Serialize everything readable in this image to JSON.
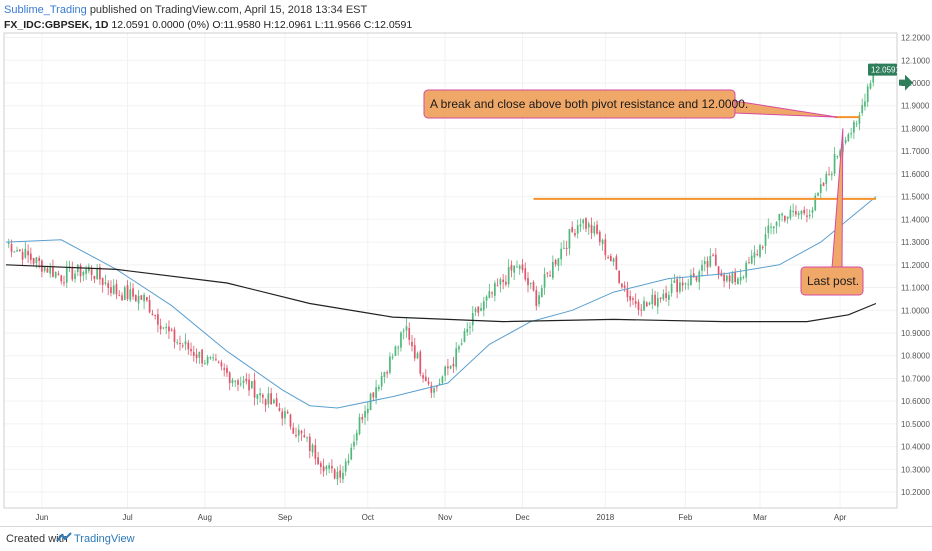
{
  "header": {
    "author": "Sublime_Trading",
    "published_text": "published on TradingView.com, April 15, 2018 13:34 EST",
    "symbol": "FX_IDC:GBPSEK, 1D",
    "ohlc_text": "12.0591 0.0000 (0%) O:11.9580 H:12.0961 L:11.9566 C:12.0591"
  },
  "footer": {
    "created_label": "Created with",
    "brand": "TradingView"
  },
  "colors": {
    "up": "#4fb87a",
    "down": "#e0556a",
    "ma_blue": "#5a9fd0",
    "ma_black": "#222222",
    "level": "#f5922b",
    "callout_fill": "#f0a868",
    "callout_border": "#d64aa0",
    "price_tag": "#2e7d5b"
  },
  "chart_data": {
    "type": "candlestick",
    "symbol": "FX_IDC:GBPSEK",
    "timeframe": "1D",
    "x_labels": [
      "Jun",
      "Jul",
      "Aug",
      "Sep",
      "Oct",
      "Nov",
      "Dec",
      "2018",
      "Feb",
      "Mar",
      "Apr"
    ],
    "y_ticks": [
      10.2,
      10.3,
      10.4,
      10.5,
      10.6,
      10.7,
      10.8,
      10.9,
      11.0,
      11.1,
      11.2,
      11.3,
      11.4,
      11.5,
      11.6,
      11.7,
      11.8,
      11.9,
      12.0,
      12.1,
      12.2
    ],
    "ylim": [
      10.13,
      12.22
    ],
    "last_price": "12.0591",
    "path_anchors": [
      [
        0,
        11.3
      ],
      [
        10,
        11.22
      ],
      [
        20,
        11.15
      ],
      [
        30,
        11.18
      ],
      [
        40,
        11.08
      ],
      [
        50,
        11.05
      ],
      [
        60,
        10.88
      ],
      [
        70,
        10.8
      ],
      [
        80,
        10.72
      ],
      [
        90,
        10.65
      ],
      [
        100,
        10.55
      ],
      [
        110,
        10.4
      ],
      [
        118,
        10.28
      ],
      [
        122,
        10.3
      ],
      [
        130,
        10.58
      ],
      [
        140,
        10.8
      ],
      [
        145,
        10.92
      ],
      [
        150,
        10.75
      ],
      [
        155,
        10.65
      ],
      [
        162,
        10.78
      ],
      [
        170,
        10.98
      ],
      [
        178,
        11.1
      ],
      [
        185,
        11.2
      ],
      [
        192,
        11.05
      ],
      [
        200,
        11.25
      ],
      [
        208,
        11.4
      ],
      [
        214,
        11.33
      ],
      [
        220,
        11.2
      ],
      [
        226,
        11.05
      ],
      [
        232,
        11.02
      ],
      [
        238,
        11.08
      ],
      [
        244,
        11.12
      ],
      [
        250,
        11.15
      ],
      [
        256,
        11.22
      ],
      [
        262,
        11.12
      ],
      [
        268,
        11.18
      ],
      [
        274,
        11.3
      ],
      [
        280,
        11.42
      ],
      [
        286,
        11.42
      ],
      [
        292,
        11.45
      ],
      [
        298,
        11.6
      ],
      [
        304,
        11.78
      ],
      [
        308,
        11.8
      ],
      [
        311,
        11.95
      ],
      [
        314,
        12.06
      ]
    ],
    "moving_averages": [
      {
        "color": "blue",
        "points": [
          [
            0,
            11.3
          ],
          [
            20,
            11.31
          ],
          [
            40,
            11.18
          ],
          [
            60,
            11.02
          ],
          [
            80,
            10.82
          ],
          [
            100,
            10.65
          ],
          [
            110,
            10.58
          ],
          [
            120,
            10.57
          ],
          [
            140,
            10.62
          ],
          [
            160,
            10.68
          ],
          [
            175,
            10.85
          ],
          [
            190,
            10.95
          ],
          [
            205,
            11.0
          ],
          [
            220,
            11.08
          ],
          [
            240,
            11.14
          ],
          [
            260,
            11.16
          ],
          [
            280,
            11.2
          ],
          [
            295,
            11.3
          ],
          [
            310,
            11.45
          ],
          [
            315,
            11.5
          ]
        ]
      },
      {
        "color": "black",
        "points": [
          [
            0,
            11.2
          ],
          [
            40,
            11.18
          ],
          [
            80,
            11.12
          ],
          [
            110,
            11.03
          ],
          [
            140,
            10.97
          ],
          [
            180,
            10.95
          ],
          [
            220,
            10.96
          ],
          [
            260,
            10.95
          ],
          [
            290,
            10.95
          ],
          [
            305,
            10.98
          ],
          [
            315,
            11.03
          ]
        ]
      }
    ],
    "levels": [
      {
        "y": 11.49,
        "x_start": 191,
        "x_end": 315
      },
      {
        "y": 11.85,
        "x_start": 300,
        "x_end": 309
      }
    ],
    "annotations": [
      {
        "text": "A break and close above both pivot resistance and 12.0000.",
        "anchor_bar": 301,
        "anchor_y": 11.85
      },
      {
        "text": "Last post.",
        "anchor_bar": 303,
        "anchor_y": 11.8
      }
    ]
  }
}
